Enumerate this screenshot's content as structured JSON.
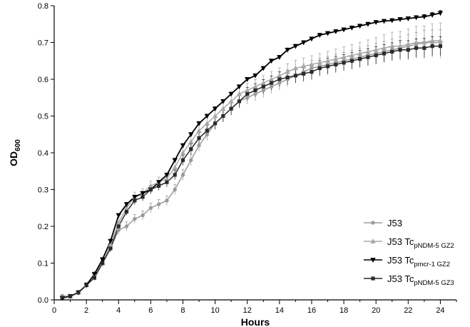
{
  "chart_data": {
    "type": "line",
    "xlabel": "Hours",
    "ylabel": "OD",
    "ylabel_sub": "600",
    "xlim": [
      0,
      25
    ],
    "ylim": [
      0,
      0.8
    ],
    "xticks": [
      0,
      2,
      4,
      6,
      8,
      10,
      12,
      14,
      16,
      18,
      20,
      22,
      24
    ],
    "yticks": [
      0.0,
      0.1,
      0.2,
      0.3,
      0.4,
      0.5,
      0.6,
      0.7,
      0.8
    ],
    "xtick_labels": [
      "0",
      "2",
      "4",
      "6",
      "8",
      "10",
      "12",
      "14",
      "16",
      "18",
      "20",
      "22",
      "24"
    ],
    "ytick_labels": [
      "0.0",
      "0.1",
      "0.2",
      "0.3",
      "0.4",
      "0.5",
      "0.6",
      "0.7",
      "0.8"
    ],
    "grid": false,
    "legend_position": "bottom-right",
    "x": [
      0.5,
      1,
      1.5,
      2,
      2.5,
      3,
      3.5,
      4,
      4.5,
      5,
      5.5,
      6,
      6.5,
      7,
      7.5,
      8,
      8.5,
      9,
      9.5,
      10,
      10.5,
      11,
      11.5,
      12,
      12.5,
      13,
      13.5,
      14,
      14.5,
      15,
      15.5,
      16,
      16.5,
      17,
      17.5,
      18,
      18.5,
      19,
      19.5,
      20,
      20.5,
      21,
      21.5,
      22,
      22.5,
      23,
      23.5,
      24
    ],
    "series": [
      {
        "name": "J53",
        "legend_base": "J53",
        "legend_sub": "",
        "color": "#9a9a9a",
        "marker": "circle",
        "values": [
          0.01,
          0.01,
          0.02,
          0.04,
          0.07,
          0.1,
          0.14,
          0.19,
          0.2,
          0.22,
          0.23,
          0.25,
          0.26,
          0.27,
          0.3,
          0.34,
          0.38,
          0.42,
          0.45,
          0.48,
          0.5,
          0.52,
          0.54,
          0.55,
          0.56,
          0.57,
          0.58,
          0.59,
          0.6,
          0.61,
          0.62,
          0.63,
          0.635,
          0.64,
          0.645,
          0.65,
          0.655,
          0.66,
          0.665,
          0.67,
          0.675,
          0.68,
          0.685,
          0.69,
          0.695,
          0.7,
          0.7,
          0.7
        ],
        "errors": [
          0.005,
          0.005,
          0.006,
          0.007,
          0.008,
          0.01,
          0.01,
          0.012,
          0.012,
          0.012,
          0.012,
          0.013,
          0.013,
          0.013,
          0.014,
          0.015,
          0.015,
          0.016,
          0.016,
          0.017,
          0.017,
          0.018,
          0.018,
          0.018,
          0.019,
          0.019,
          0.019,
          0.02,
          0.02,
          0.02,
          0.021,
          0.021,
          0.022,
          0.022,
          0.023,
          0.023,
          0.024,
          0.025,
          0.026,
          0.027,
          0.028,
          0.029,
          0.03,
          0.031,
          0.032,
          0.033,
          0.034,
          0.035
        ]
      },
      {
        "name": "J53 TcpNDM-5 GZ2",
        "legend_base": "J53 Tc",
        "legend_sub": "pNDM-5 GZ2",
        "color": "#a8a8a8",
        "marker": "triangle-up",
        "values": [
          0.005,
          0.01,
          0.02,
          0.04,
          0.07,
          0.1,
          0.15,
          0.21,
          0.25,
          0.28,
          0.29,
          0.31,
          0.32,
          0.33,
          0.36,
          0.4,
          0.43,
          0.46,
          0.48,
          0.5,
          0.52,
          0.54,
          0.56,
          0.57,
          0.58,
          0.59,
          0.6,
          0.61,
          0.62,
          0.63,
          0.635,
          0.64,
          0.645,
          0.65,
          0.655,
          0.66,
          0.665,
          0.67,
          0.675,
          0.68,
          0.685,
          0.69,
          0.69,
          0.695,
          0.7,
          0.7,
          0.705,
          0.705
        ],
        "errors": [
          0.004,
          0.005,
          0.006,
          0.007,
          0.008,
          0.01,
          0.01,
          0.012,
          0.012,
          0.013,
          0.013,
          0.013,
          0.014,
          0.014,
          0.015,
          0.015,
          0.016,
          0.016,
          0.017,
          0.017,
          0.018,
          0.018,
          0.019,
          0.019,
          0.02,
          0.02,
          0.021,
          0.021,
          0.022,
          0.022,
          0.023,
          0.024,
          0.025,
          0.026,
          0.027,
          0.028,
          0.029,
          0.03,
          0.032,
          0.034,
          0.036,
          0.038,
          0.04,
          0.042,
          0.044,
          0.045,
          0.046,
          0.048
        ]
      },
      {
        "name": "J53 Tcpmcr-1 GZ2",
        "legend_base": "J53 Tc",
        "legend_sub": "pmcr-1 GZ2",
        "color": "#000000",
        "marker": "triangle-down",
        "values": [
          0.005,
          0.01,
          0.02,
          0.04,
          0.07,
          0.11,
          0.16,
          0.23,
          0.26,
          0.28,
          0.29,
          0.3,
          0.32,
          0.34,
          0.38,
          0.42,
          0.45,
          0.48,
          0.5,
          0.52,
          0.54,
          0.56,
          0.58,
          0.6,
          0.61,
          0.63,
          0.65,
          0.66,
          0.68,
          0.69,
          0.7,
          0.71,
          0.72,
          0.725,
          0.73,
          0.735,
          0.74,
          0.745,
          0.75,
          0.755,
          0.758,
          0.76,
          0.763,
          0.765,
          0.768,
          0.77,
          0.775,
          0.78
        ],
        "errors": [
          0.003,
          0.003,
          0.004,
          0.004,
          0.004,
          0.005,
          0.005,
          0.005,
          0.005,
          0.005,
          0.005,
          0.005,
          0.005,
          0.005,
          0.005,
          0.005,
          0.005,
          0.005,
          0.005,
          0.005,
          0.005,
          0.005,
          0.005,
          0.005,
          0.005,
          0.005,
          0.005,
          0.005,
          0.005,
          0.005,
          0.005,
          0.005,
          0.005,
          0.005,
          0.005,
          0.005,
          0.005,
          0.005,
          0.005,
          0.005,
          0.005,
          0.005,
          0.005,
          0.005,
          0.005,
          0.006,
          0.007,
          0.007
        ]
      },
      {
        "name": "J53 TcpNDM-5 GZ3",
        "legend_base": "J53 Tc",
        "legend_sub": "pNDM-5 GZ3",
        "color": "#2a2a2a",
        "marker": "square",
        "values": [
          0.005,
          0.01,
          0.02,
          0.04,
          0.06,
          0.1,
          0.14,
          0.2,
          0.24,
          0.27,
          0.28,
          0.3,
          0.31,
          0.32,
          0.34,
          0.38,
          0.41,
          0.44,
          0.46,
          0.48,
          0.5,
          0.52,
          0.54,
          0.56,
          0.57,
          0.58,
          0.59,
          0.6,
          0.605,
          0.61,
          0.615,
          0.62,
          0.63,
          0.635,
          0.64,
          0.645,
          0.65,
          0.655,
          0.66,
          0.665,
          0.67,
          0.675,
          0.68,
          0.68,
          0.685,
          0.685,
          0.69,
          0.69
        ],
        "errors": [
          0.003,
          0.004,
          0.005,
          0.006,
          0.007,
          0.008,
          0.009,
          0.01,
          0.01,
          0.011,
          0.011,
          0.012,
          0.012,
          0.013,
          0.013,
          0.014,
          0.014,
          0.015,
          0.015,
          0.016,
          0.016,
          0.017,
          0.017,
          0.018,
          0.018,
          0.019,
          0.019,
          0.02,
          0.02,
          0.02,
          0.021,
          0.021,
          0.021,
          0.022,
          0.022,
          0.022,
          0.023,
          0.023,
          0.023,
          0.024,
          0.024,
          0.024,
          0.025,
          0.025,
          0.025,
          0.026,
          0.026,
          0.026
        ]
      }
    ]
  }
}
